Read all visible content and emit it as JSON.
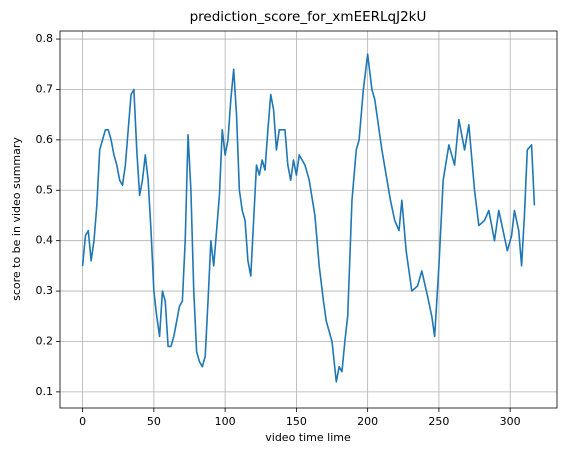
{
  "chart_data": {
    "type": "line",
    "title": "prediction_score_for_xmEERLqJ2kU",
    "x_label": "video time lime",
    "y_label": "score to be in video summary",
    "x": [
      0,
      2,
      4,
      6,
      8,
      10,
      12,
      14,
      16,
      18,
      20,
      22,
      24,
      26,
      28,
      30,
      32,
      34,
      36,
      38,
      40,
      42,
      44,
      46,
      48,
      50,
      52,
      54,
      56,
      58,
      60,
      62,
      64,
      66,
      68,
      70,
      72,
      74,
      76,
      78,
      80,
      82,
      84,
      86,
      88,
      90,
      92,
      94,
      96,
      98,
      100,
      102,
      104,
      106,
      108,
      110,
      112,
      114,
      116,
      118,
      120,
      122,
      124,
      126,
      128,
      130,
      132,
      134,
      136,
      138,
      140,
      142,
      144,
      146,
      148,
      150,
      152,
      156,
      159,
      163,
      166,
      169,
      171,
      173,
      175,
      178,
      180,
      182,
      184,
      186,
      189,
      192,
      194,
      197,
      200,
      203,
      205,
      208,
      210,
      213,
      216,
      219,
      222,
      224,
      227,
      231,
      235,
      238,
      242,
      245,
      247,
      250,
      253,
      257,
      261,
      264,
      268,
      271,
      275,
      278,
      282,
      285,
      289,
      292,
      295,
      298,
      301,
      303,
      306,
      308,
      310,
      312,
      315,
      317
    ],
    "series": [
      {
        "name": "prediction_score",
        "color": "#1f77b4",
        "values": [
          0.35,
          0.41,
          0.42,
          0.36,
          0.4,
          0.47,
          0.58,
          0.6,
          0.62,
          0.62,
          0.6,
          0.57,
          0.55,
          0.52,
          0.51,
          0.55,
          0.62,
          0.69,
          0.7,
          0.58,
          0.49,
          0.52,
          0.57,
          0.52,
          0.42,
          0.3,
          0.25,
          0.21,
          0.3,
          0.28,
          0.19,
          0.19,
          0.21,
          0.24,
          0.27,
          0.28,
          0.4,
          0.61,
          0.5,
          0.3,
          0.18,
          0.16,
          0.15,
          0.17,
          0.28,
          0.4,
          0.35,
          0.42,
          0.49,
          0.62,
          0.57,
          0.6,
          0.68,
          0.74,
          0.65,
          0.5,
          0.46,
          0.44,
          0.36,
          0.33,
          0.44,
          0.55,
          0.53,
          0.56,
          0.54,
          0.62,
          0.69,
          0.66,
          0.58,
          0.62,
          0.62,
          0.62,
          0.55,
          0.52,
          0.56,
          0.53,
          0.57,
          0.55,
          0.52,
          0.45,
          0.35,
          0.28,
          0.24,
          0.22,
          0.2,
          0.12,
          0.15,
          0.14,
          0.2,
          0.25,
          0.48,
          0.58,
          0.6,
          0.7,
          0.77,
          0.7,
          0.68,
          0.62,
          0.58,
          0.53,
          0.48,
          0.44,
          0.42,
          0.48,
          0.38,
          0.3,
          0.31,
          0.34,
          0.29,
          0.25,
          0.21,
          0.35,
          0.52,
          0.59,
          0.55,
          0.64,
          0.58,
          0.63,
          0.5,
          0.43,
          0.44,
          0.46,
          0.4,
          0.46,
          0.42,
          0.38,
          0.41,
          0.46,
          0.42,
          0.35,
          0.45,
          0.58,
          0.59,
          0.47
        ]
      }
    ],
    "xlim": [
      -15.85,
      332.85
    ],
    "xticks": [
      0,
      50,
      100,
      150,
      200,
      250,
      300
    ],
    "ylim": [
      0.068,
      0.816
    ],
    "yticks": [
      0.1,
      0.2,
      0.3,
      0.4,
      0.5,
      0.6,
      0.7,
      0.8
    ],
    "grid": true
  }
}
